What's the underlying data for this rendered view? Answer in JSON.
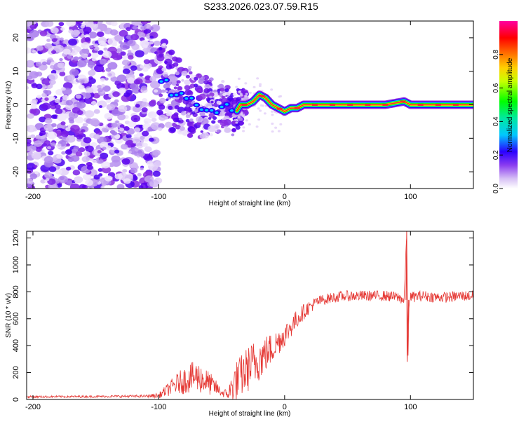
{
  "page": {
    "title": "S233.2026.023.07.59.R15"
  },
  "colors": {
    "snr_line": "#e53935",
    "spectral_low": "#b78bf0",
    "spectral_mid": "#4a00e8",
    "spectral_high": "#ff2a2a"
  },
  "chart_data": [
    {
      "type": "heatmap",
      "title": "S233.2026.023.07.59.R15",
      "xlabel": "Height of straight line (km)",
      "ylabel": "Frequency (Hz)",
      "xlim": [
        -205,
        150
      ],
      "ylim": [
        -25,
        25
      ],
      "x_ticks": [
        -200,
        -100,
        0,
        100
      ],
      "x_tick_labels": [
        "-200",
        "-100",
        "0",
        "100"
      ],
      "y_ticks": [
        20,
        10,
        0,
        -10,
        -20
      ],
      "y_tick_labels": [
        "20",
        "10",
        "0",
        "-10",
        "-20"
      ],
      "colorbar": {
        "label": "Normalized spectral amplitude",
        "range": [
          0,
          1
        ],
        "ticks": [
          0.0,
          0.2,
          0.4,
          0.6,
          0.8
        ],
        "tick_labels": [
          "0.0",
          "0.2",
          "0.4",
          "0.6",
          "0.8"
        ]
      },
      "ridge": {
        "description_points_x": [
          -100,
          -95,
          -90,
          -85,
          -80,
          -75,
          -70,
          -65,
          -60,
          -55,
          -50,
          -45,
          -40,
          -35,
          -30,
          -25,
          -20,
          -15,
          -10,
          -5,
          0,
          5,
          10,
          15,
          20,
          40,
          60,
          80,
          95,
          100,
          120,
          150
        ],
        "frequency": [
          5,
          7,
          4,
          3,
          2,
          1,
          0,
          -1,
          0,
          -2,
          0,
          -1,
          -3,
          0,
          0,
          1,
          3,
          2,
          0,
          -1,
          -2,
          -1,
          -1,
          0,
          0,
          0,
          0,
          0,
          1,
          0,
          0,
          0
        ]
      }
    },
    {
      "type": "line",
      "xlabel": "Height of straight line (km)",
      "ylabel": "SNR (10 * v/v)",
      "xlim": [
        -205,
        150
      ],
      "ylim": [
        0,
        1250
      ],
      "x_ticks": [
        -200,
        -100,
        0,
        100
      ],
      "x_tick_labels": [
        "-200",
        "-100",
        "0",
        "100"
      ],
      "y_ticks": [
        0,
        200,
        400,
        600,
        800,
        1000,
        1200
      ],
      "y_tick_labels": [
        "0",
        "200",
        "400",
        "600",
        "800",
        "1000",
        "1200"
      ],
      "series": [
        {
          "name": "SNR",
          "x": [
            -205,
            -150,
            -110,
            -100,
            -95,
            -90,
            -85,
            -80,
            -75,
            -70,
            -65,
            -60,
            -55,
            -50,
            -45,
            -40,
            -35,
            -30,
            -25,
            -20,
            -15,
            -10,
            -5,
            0,
            5,
            10,
            15,
            20,
            25,
            30,
            35,
            40,
            50,
            60,
            70,
            80,
            90,
            95,
            97,
            98,
            99,
            100,
            110,
            120,
            130,
            140,
            150
          ],
          "values": [
            20,
            22,
            25,
            30,
            60,
            90,
            120,
            140,
            160,
            170,
            150,
            120,
            90,
            50,
            40,
            120,
            170,
            220,
            260,
            300,
            340,
            380,
            430,
            480,
            540,
            600,
            650,
            690,
            720,
            740,
            750,
            760,
            770,
            770,
            770,
            770,
            760,
            740,
            1250,
            280,
            760,
            760,
            770,
            760,
            760,
            770,
            770
          ],
          "noise_amplitude": [
            8,
            8,
            10,
            20,
            40,
            60,
            80,
            100,
            110,
            120,
            110,
            90,
            60,
            30,
            40,
            150,
            160,
            170,
            180,
            160,
            140,
            120,
            100,
            90,
            80,
            70,
            60,
            50,
            45,
            40,
            40,
            40,
            40,
            40,
            40,
            40,
            40,
            40,
            0,
            0,
            40,
            40,
            40,
            40,
            40,
            40,
            40
          ]
        }
      ]
    }
  ]
}
